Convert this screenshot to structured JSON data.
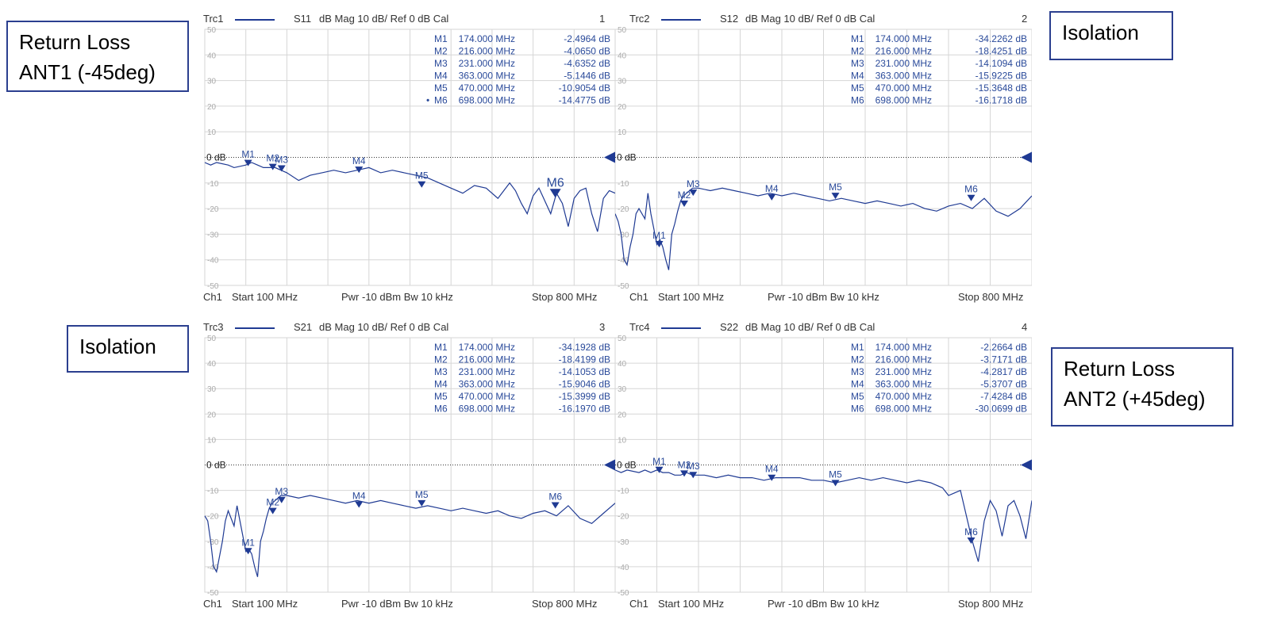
{
  "labels": {
    "tl": [
      "Return Loss",
      "ANT1 (-45deg)"
    ],
    "tr": [
      "Isolation"
    ],
    "bl": [
      "Isolation"
    ],
    "br": [
      "Return Loss",
      "ANT2 (+45deg)"
    ]
  },
  "footer": {
    "ch": "Ch1",
    "start": "Start  100 MHz",
    "pwr": "Pwr  -10 dBm  Bw  10 kHz",
    "stop": "Stop  800 MHz"
  },
  "ref_label": "0 dB",
  "colors": {
    "trace": "#1f3a93",
    "grid": "#d6d6d6",
    "marker_text": "#2a4a9a",
    "label_border": "#2b3f8f"
  },
  "chart_data": [
    {
      "type": "line",
      "trace": "Trc1",
      "param": "S11",
      "format": "dB Mag  10 dB/ Ref 0 dB  Cal",
      "number": "1",
      "xlim": [
        100,
        800
      ],
      "ylim": [
        -50,
        50
      ],
      "yticks": [
        50,
        40,
        30,
        20,
        10,
        0,
        -10,
        -20,
        -30,
        -40,
        -50
      ],
      "x": [
        100,
        110,
        120,
        140,
        150,
        170,
        180,
        190,
        200,
        210,
        220,
        230,
        240,
        260,
        280,
        300,
        320,
        340,
        360,
        380,
        400,
        420,
        440,
        460,
        480,
        500,
        520,
        540,
        560,
        580,
        600,
        610,
        620,
        630,
        640,
        650,
        660,
        670,
        680,
        690,
        700,
        710,
        720,
        730,
        740,
        750,
        760,
        770,
        780,
        790,
        800
      ],
      "y": [
        -2,
        -3,
        -2,
        -3,
        -4,
        -3,
        -2,
        -3,
        -4,
        -4,
        -4,
        -5,
        -6,
        -9,
        -7,
        -6,
        -5,
        -6,
        -5,
        -4,
        -6,
        -5,
        -6,
        -7,
        -8,
        -10,
        -12,
        -14,
        -11,
        -12,
        -16,
        -13,
        -10,
        -13,
        -18,
        -22,
        -15,
        -12,
        -17,
        -22,
        -14,
        -18,
        -27,
        -16,
        -13,
        -12,
        -22,
        -29,
        -16,
        -13,
        -14
      ],
      "markers": [
        {
          "id": "M1",
          "freq": "174.000 MHz",
          "value": "-2.4964 dB",
          "x": 174,
          "y": -2.4964,
          "active": false
        },
        {
          "id": "M2",
          "freq": "216.000 MHz",
          "value": "-4.0650 dB",
          "x": 216,
          "y": -4.065,
          "active": false
        },
        {
          "id": "M3",
          "freq": "231.000 MHz",
          "value": "-4.6352 dB",
          "x": 231,
          "y": -4.6352,
          "active": false
        },
        {
          "id": "M4",
          "freq": "363.000 MHz",
          "value": "-5.1446 dB",
          "x": 363,
          "y": -5.1446,
          "active": false
        },
        {
          "id": "M5",
          "freq": "470.000 MHz",
          "value": "-10.9054 dB",
          "x": 470,
          "y": -10.9054,
          "active": false
        },
        {
          "id": "M6",
          "freq": "698.000 MHz",
          "value": "-14.4775 dB",
          "x": 698,
          "y": -14.4775,
          "active": true
        }
      ]
    },
    {
      "type": "line",
      "trace": "Trc2",
      "param": "S12",
      "format": "dB Mag  10 dB/ Ref 0 dB  Cal",
      "number": "2",
      "xlim": [
        100,
        800
      ],
      "ylim": [
        -50,
        50
      ],
      "yticks": [
        50,
        40,
        30,
        20,
        10,
        0,
        -10,
        -20,
        -30,
        -40,
        -50
      ],
      "x": [
        100,
        105,
        110,
        115,
        120,
        125,
        130,
        135,
        140,
        150,
        155,
        160,
        165,
        170,
        175,
        180,
        185,
        190,
        195,
        200,
        205,
        210,
        215,
        220,
        225,
        230,
        240,
        260,
        280,
        300,
        320,
        340,
        360,
        380,
        400,
        420,
        440,
        460,
        480,
        500,
        520,
        540,
        560,
        580,
        600,
        620,
        640,
        660,
        680,
        700,
        720,
        740,
        760,
        780,
        800
      ],
      "y": [
        -22,
        -25,
        -30,
        -40,
        -42,
        -35,
        -30,
        -22,
        -20,
        -24,
        -14,
        -22,
        -28,
        -34,
        -32,
        -35,
        -40,
        -44,
        -30,
        -26,
        -21,
        -17,
        -15,
        -14,
        -13,
        -12,
        -12,
        -13,
        -12,
        -13,
        -14,
        -15,
        -14,
        -15,
        -14,
        -15,
        -16,
        -17,
        -16,
        -17,
        -18,
        -17,
        -18,
        -19,
        -18,
        -20,
        -21,
        -19,
        -18,
        -20,
        -16,
        -21,
        -23,
        -20,
        -15
      ],
      "markers": [
        {
          "id": "M1",
          "freq": "174.000 MHz",
          "value": "-34.2262 dB",
          "x": 174,
          "y": -34.2262
        },
        {
          "id": "M2",
          "freq": "216.000 MHz",
          "value": "-18.4251 dB",
          "x": 216,
          "y": -18.4251
        },
        {
          "id": "M3",
          "freq": "231.000 MHz",
          "value": "-14.1094 dB",
          "x": 231,
          "y": -14.1094
        },
        {
          "id": "M4",
          "freq": "363.000 MHz",
          "value": "-15.9225 dB",
          "x": 363,
          "y": -15.9225
        },
        {
          "id": "M5",
          "freq": "470.000 MHz",
          "value": "-15.3648 dB",
          "x": 470,
          "y": -15.3648
        },
        {
          "id": "M6",
          "freq": "698.000 MHz",
          "value": "-16.1718 dB",
          "x": 698,
          "y": -16.1718
        }
      ]
    },
    {
      "type": "line",
      "trace": "Trc3",
      "param": "S21",
      "format": "dB Mag  10 dB/ Ref 0 dB  Cal",
      "number": "3",
      "xlim": [
        100,
        800
      ],
      "ylim": [
        -50,
        50
      ],
      "yticks": [
        50,
        40,
        30,
        20,
        10,
        0,
        -10,
        -20,
        -30,
        -40,
        -50
      ],
      "x": [
        100,
        105,
        110,
        115,
        120,
        125,
        130,
        135,
        140,
        150,
        155,
        160,
        165,
        170,
        175,
        180,
        185,
        190,
        195,
        200,
        205,
        210,
        215,
        220,
        225,
        230,
        240,
        260,
        280,
        300,
        320,
        340,
        360,
        380,
        400,
        420,
        440,
        460,
        480,
        500,
        520,
        540,
        560,
        580,
        600,
        620,
        640,
        660,
        680,
        700,
        720,
        740,
        760,
        780,
        800
      ],
      "y": [
        -20,
        -22,
        -30,
        -40,
        -42,
        -36,
        -30,
        -22,
        -18,
        -24,
        -16,
        -22,
        -28,
        -34,
        -33,
        -35,
        -40,
        -44,
        -30,
        -26,
        -21,
        -17,
        -15,
        -14,
        -13,
        -12,
        -12,
        -13,
        -12,
        -13,
        -14,
        -15,
        -14,
        -15,
        -14,
        -15,
        -16,
        -17,
        -16,
        -17,
        -18,
        -17,
        -18,
        -19,
        -18,
        -20,
        -21,
        -19,
        -18,
        -20,
        -16,
        -21,
        -23,
        -19,
        -15
      ],
      "markers": [
        {
          "id": "M1",
          "freq": "174.000 MHz",
          "value": "-34.1928 dB",
          "x": 174,
          "y": -34.1928
        },
        {
          "id": "M2",
          "freq": "216.000 MHz",
          "value": "-18.4199 dB",
          "x": 216,
          "y": -18.4199
        },
        {
          "id": "M3",
          "freq": "231.000 MHz",
          "value": "-14.1053 dB",
          "x": 231,
          "y": -14.1053
        },
        {
          "id": "M4",
          "freq": "363.000 MHz",
          "value": "-15.9046 dB",
          "x": 363,
          "y": -15.9046
        },
        {
          "id": "M5",
          "freq": "470.000 MHz",
          "value": "-15.3999 dB",
          "x": 470,
          "y": -15.3999
        },
        {
          "id": "M6",
          "freq": "698.000 MHz",
          "value": "-16.1970 dB",
          "x": 698,
          "y": -16.197
        }
      ]
    },
    {
      "type": "line",
      "trace": "Trc4",
      "param": "S22",
      "format": "dB Mag  10 dB/ Ref 0 dB  Cal",
      "number": "4",
      "xlim": [
        100,
        800
      ],
      "ylim": [
        -50,
        50
      ],
      "yticks": [
        50,
        40,
        30,
        20,
        10,
        0,
        -10,
        -20,
        -30,
        -40,
        -50
      ],
      "x": [
        100,
        110,
        120,
        140,
        150,
        160,
        170,
        180,
        190,
        200,
        210,
        220,
        230,
        250,
        270,
        290,
        310,
        330,
        350,
        370,
        390,
        410,
        430,
        450,
        470,
        490,
        510,
        530,
        550,
        570,
        590,
        610,
        630,
        650,
        660,
        670,
        680,
        690,
        700,
        710,
        720,
        730,
        740,
        750,
        760,
        770,
        780,
        790,
        800
      ],
      "y": [
        -2,
        -3,
        -2,
        -3,
        -2,
        -3,
        -2,
        -3,
        -3,
        -4,
        -4,
        -3,
        -4,
        -4,
        -5,
        -4,
        -5,
        -5,
        -6,
        -5,
        -5,
        -5,
        -6,
        -6,
        -7,
        -6,
        -5,
        -6,
        -5,
        -6,
        -7,
        -6,
        -7,
        -9,
        -12,
        -11,
        -10,
        -20,
        -30,
        -38,
        -22,
        -14,
        -18,
        -28,
        -16,
        -14,
        -20,
        -29,
        -14
      ],
      "markers": [
        {
          "id": "M1",
          "freq": "174.000 MHz",
          "value": "-2.2664 dB",
          "x": 174,
          "y": -2.2664
        },
        {
          "id": "M2",
          "freq": "216.000 MHz",
          "value": "-3.7171 dB",
          "x": 216,
          "y": -3.7171
        },
        {
          "id": "M3",
          "freq": "231.000 MHz",
          "value": "-4.2817 dB",
          "x": 231,
          "y": -4.2817
        },
        {
          "id": "M4",
          "freq": "363.000 MHz",
          "value": "-5.3707 dB",
          "x": 363,
          "y": -5.3707
        },
        {
          "id": "M5",
          "freq": "470.000 MHz",
          "value": "-7.4284 dB",
          "x": 470,
          "y": -7.4284
        },
        {
          "id": "M6",
          "freq": "698.000 MHz",
          "value": "-30.0699 dB",
          "x": 698,
          "y": -30.0699
        }
      ]
    }
  ]
}
